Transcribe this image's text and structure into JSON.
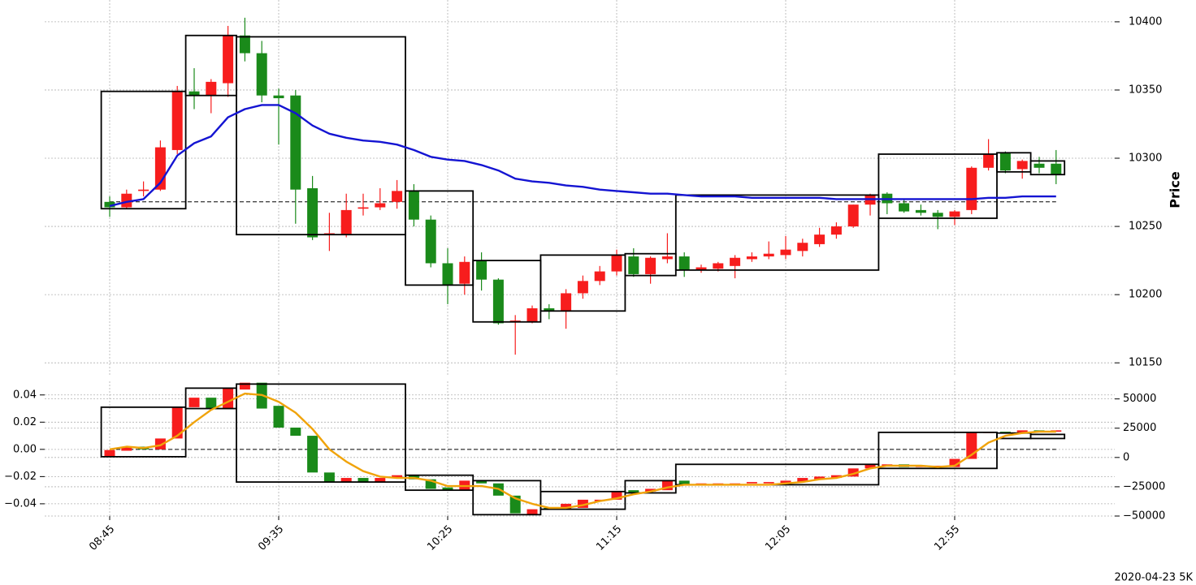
{
  "chart_data": {
    "type": "candlestick",
    "date_label": "2020-04-23 5K",
    "grid": true,
    "up_color": "#f71d1d",
    "down_color": "#1a8a1a",
    "categories": [
      "08:45",
      null,
      null,
      null,
      null,
      null,
      null,
      null,
      null,
      null,
      "09:35",
      null,
      null,
      null,
      null,
      null,
      null,
      null,
      null,
      null,
      "10:25",
      null,
      null,
      null,
      null,
      null,
      null,
      null,
      null,
      null,
      "11:15",
      null,
      null,
      null,
      null,
      null,
      null,
      null,
      null,
      null,
      "12:05",
      null,
      null,
      null,
      null,
      null,
      null,
      null,
      null,
      null,
      "12:55",
      null,
      null,
      null,
      null,
      null,
      null
    ],
    "panels": [
      {
        "ylabel": "Price",
        "ylim": [
          10140,
          10416
        ],
        "yticks": [
          10150,
          10200,
          10250,
          10300,
          10350,
          10400
        ],
        "open": [
          10268,
          10264,
          10276,
          10277,
          10306,
          10349,
          10346,
          10355,
          10390,
          10377,
          10346,
          10346,
          10278,
          10244,
          10244,
          10263,
          10264,
          10268,
          10276,
          10255,
          10223,
          10208,
          10225,
          10211,
          10180,
          10180,
          10190,
          10188,
          10201,
          10210,
          10217,
          10228,
          10215,
          10226,
          10228,
          10218,
          10219,
          10221,
          10226,
          10228,
          10229,
          10232,
          10237,
          10244,
          10250,
          10266,
          10274,
          10267,
          10262,
          10260,
          10257,
          10262,
          10293,
          10304,
          10292,
          10296,
          10296
        ],
        "high": [
          10272,
          10277,
          10283,
          10313,
          10353,
          10366,
          10358,
          10397,
          10403,
          10386,
          10351,
          10350,
          10287,
          10260,
          10274,
          10274,
          10278,
          10284,
          10281,
          10258,
          10234,
          10228,
          10231,
          10212,
          10185,
          10192,
          10193,
          10204,
          10214,
          10221,
          10233,
          10234,
          10228,
          10245,
          10231,
          10222,
          10224,
          10229,
          10231,
          10239,
          10243,
          10241,
          10249,
          10253,
          10266,
          10274,
          10275,
          10270,
          10266,
          10262,
          10262,
          10294,
          10314,
          10305,
          10299,
          10301,
          10306
        ],
        "low": [
          10257,
          10263,
          10272,
          10276,
          10303,
          10336,
          10333,
          10345,
          10371,
          10341,
          10310,
          10252,
          10240,
          10232,
          10242,
          10258,
          10262,
          10263,
          10250,
          10220,
          10193,
          10200,
          10203,
          10178,
          10156,
          10179,
          10182,
          10175,
          10197,
          10207,
          10214,
          10213,
          10208,
          10223,
          10213,
          10216,
          10217,
          10212,
          10224,
          10226,
          10226,
          10228,
          10235,
          10241,
          10249,
          10258,
          10259,
          10260,
          10258,
          10248,
          10251,
          10259,
          10291,
          10289,
          10285,
          10289,
          10281
        ],
        "close": [
          10264,
          10274,
          10277,
          10308,
          10349,
          10346,
          10356,
          10390,
          10377,
          10346,
          10344,
          10277,
          10242,
          10245,
          10262,
          10264,
          10267,
          10276,
          10255,
          10223,
          10207,
          10224,
          10211,
          10179,
          10181,
          10190,
          10188,
          10201,
          10210,
          10217,
          10229,
          10215,
          10227,
          10228,
          10218,
          10220,
          10223,
          10227,
          10228,
          10230,
          10233,
          10238,
          10244,
          10250,
          10266,
          10273,
          10267,
          10261,
          10260,
          10257,
          10261,
          10293,
          10303,
          10291,
          10298,
          10293,
          10288
        ],
        "lines": [
          {
            "color": "#1414d2",
            "values": [
              10265,
              10268,
              10270,
              10282,
              10302,
              10311,
              10316,
              10330,
              10336,
              10339,
              10339,
              10333,
              10324,
              10318,
              10315,
              10313,
              10312,
              10310,
              10306,
              10301,
              10299,
              10298,
              10295,
              10291,
              10285,
              10283,
              10282,
              10280,
              10279,
              10277,
              10276,
              10275,
              10274,
              10274,
              10273,
              10272,
              10272,
              10272,
              10271,
              10271,
              10271,
              10271,
              10271,
              10270,
              10270,
              10270,
              10270,
              10270,
              10270,
              10270,
              10270,
              10270,
              10271,
              10271,
              10272,
              10272,
              10272
            ]
          }
        ],
        "hline": 10268,
        "boxes": [
          {
            "x": [
              0,
              4
            ],
            "low": 10263,
            "high": 10349
          },
          {
            "x": [
              5,
              7
            ],
            "low": 10346,
            "high": 10390
          },
          {
            "x": [
              8,
              17
            ],
            "low": 10244,
            "high": 10389
          },
          {
            "x": [
              18,
              21
            ],
            "low": 10207,
            "high": 10276
          },
          {
            "x": [
              22,
              25
            ],
            "low": 10180,
            "high": 10225
          },
          {
            "x": [
              26,
              30
            ],
            "low": 10188,
            "high": 10229
          },
          {
            "x": [
              31,
              33
            ],
            "low": 10214,
            "high": 10230
          },
          {
            "x": [
              34,
              45
            ],
            "low": 10218,
            "high": 10273
          },
          {
            "x": [
              46,
              52
            ],
            "low": 10256,
            "high": 10303
          },
          {
            "x": [
              53,
              54
            ],
            "low": 10290,
            "high": 10304
          },
          {
            "x": [
              55,
              56
            ],
            "low": 10288,
            "high": 10298
          }
        ]
      },
      {
        "ylim": [
          -0.049,
          0.05
        ],
        "yticks": [
          {
            "value": -0.04,
            "label": "−0.04"
          },
          {
            "value": -0.02,
            "label": "−0.02"
          },
          {
            "value": 0,
            "label": "0.00"
          },
          {
            "value": 0.02,
            "label": "0.02"
          },
          {
            "value": 0.04,
            "label": "0.04"
          }
        ],
        "y2lim": [
          -50000,
          65000
        ],
        "y2ticks": [
          {
            "value": -50000,
            "label": "−50000"
          },
          {
            "value": -25000,
            "label": "−25000"
          },
          0,
          25000,
          50000
        ],
        "open": [
          -0.005,
          -0.001,
          0.002,
          0.0,
          0.008,
          0.031,
          0.038,
          0.03,
          0.044,
          0.049,
          0.032,
          0.016,
          0.01,
          -0.017,
          -0.024,
          -0.021,
          -0.024,
          -0.021,
          -0.019,
          -0.022,
          -0.028,
          -0.03,
          -0.023,
          -0.025,
          -0.034,
          -0.048,
          -0.043,
          -0.044,
          -0.043,
          -0.038,
          -0.037,
          -0.03,
          -0.031,
          -0.03,
          -0.023,
          -0.026,
          -0.026,
          -0.0255,
          -0.025,
          -0.025,
          -0.025,
          -0.024,
          -0.022,
          -0.021,
          -0.02,
          -0.014,
          -0.012,
          -0.011,
          -0.013,
          -0.013,
          -0.013,
          -0.007,
          0.012,
          0.013,
          0.012,
          0.014,
          0.013
        ],
        "close": [
          -0.0005,
          0.002,
          0.0,
          0.008,
          0.031,
          0.038,
          0.03,
          0.045,
          0.049,
          0.03,
          0.016,
          0.01,
          -0.017,
          -0.024,
          -0.021,
          -0.024,
          -0.021,
          -0.019,
          -0.022,
          -0.029,
          -0.03,
          -0.023,
          -0.025,
          -0.034,
          -0.047,
          -0.044,
          -0.044,
          -0.04,
          -0.037,
          -0.037,
          -0.031,
          -0.032,
          -0.029,
          -0.023,
          -0.026,
          -0.025,
          -0.025,
          -0.025,
          -0.024,
          -0.024,
          -0.023,
          -0.021,
          -0.02,
          -0.019,
          -0.014,
          -0.011,
          -0.011,
          -0.013,
          -0.012,
          -0.012,
          -0.007,
          0.013,
          0.013,
          0.012,
          0.014,
          0.013,
          0.014
        ],
        "lines": [
          {
            "color": "#f0a30a",
            "values": [
              0.0,
              0.002,
              0.001,
              0.003,
              0.01,
              0.02,
              0.029,
              0.035,
              0.041,
              0.04,
              0.035,
              0.027,
              0.015,
              0.0,
              -0.009,
              -0.016,
              -0.02,
              -0.021,
              -0.021,
              -0.023,
              -0.027,
              -0.027,
              -0.027,
              -0.029,
              -0.036,
              -0.04,
              -0.043,
              -0.043,
              -0.041,
              -0.038,
              -0.036,
              -0.033,
              -0.031,
              -0.028,
              -0.026,
              -0.026,
              -0.026,
              -0.026,
              -0.026,
              -0.026,
              -0.025,
              -0.024,
              -0.022,
              -0.021,
              -0.018,
              -0.014,
              -0.012,
              -0.012,
              -0.012,
              -0.013,
              -0.012,
              -0.004,
              0.005,
              0.01,
              0.012,
              0.013,
              0.013
            ]
          }
        ],
        "hline": 0,
        "boxes": [
          {
            "x": [
              0,
              4
            ],
            "low": -0.0054,
            "high": 0.031
          },
          {
            "x": [
              5,
              7
            ],
            "low": 0.03,
            "high": 0.045
          },
          {
            "x": [
              8,
              17
            ],
            "low": -0.024,
            "high": 0.048
          },
          {
            "x": [
              18,
              21
            ],
            "low": -0.03,
            "high": -0.019
          },
          {
            "x": [
              22,
              25
            ],
            "low": -0.048,
            "high": -0.023
          },
          {
            "x": [
              26,
              30
            ],
            "low": -0.044,
            "high": -0.031
          },
          {
            "x": [
              31,
              33
            ],
            "low": -0.032,
            "high": -0.023
          },
          {
            "x": [
              34,
              45
            ],
            "low": -0.026,
            "high": -0.011
          },
          {
            "x": [
              46,
              52
            ],
            "low": -0.014,
            "high": 0.0125
          },
          {
            "x": [
              53,
              54
            ],
            "low": 0.008,
            "high": 0.012
          },
          {
            "x": [
              55,
              56
            ],
            "low": 0.008,
            "high": 0.011
          }
        ]
      }
    ]
  }
}
